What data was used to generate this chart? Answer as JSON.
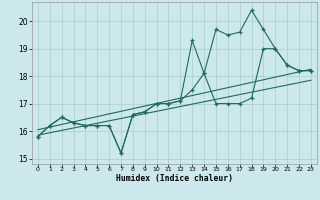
{
  "bg_color": "#cce8ec",
  "grid_color": "#aacdd0",
  "line_color": "#1e6b5a",
  "xlim": [
    -0.5,
    23.5
  ],
  "ylim": [
    14.8,
    20.7
  ],
  "yticks": [
    15,
    16,
    17,
    18,
    19,
    20
  ],
  "xticks": [
    0,
    1,
    2,
    3,
    4,
    5,
    6,
    7,
    8,
    9,
    10,
    11,
    12,
    13,
    14,
    15,
    16,
    17,
    18,
    19,
    20,
    21,
    22,
    23
  ],
  "xlabel": "Humidex (Indice chaleur)",
  "series1_x": [
    0,
    1,
    2,
    3,
    4,
    5,
    6,
    7,
    8,
    9,
    10,
    11,
    12,
    13,
    14,
    15,
    16,
    17,
    18,
    19,
    20,
    21,
    22,
    23
  ],
  "series1_y": [
    15.8,
    16.2,
    16.5,
    16.3,
    16.2,
    16.2,
    16.2,
    15.2,
    16.6,
    16.7,
    17.0,
    17.0,
    17.1,
    19.3,
    18.1,
    19.7,
    19.5,
    19.6,
    20.4,
    19.7,
    19.0,
    18.4,
    18.2,
    18.2
  ],
  "series2_x": [
    0,
    1,
    2,
    3,
    4,
    5,
    6,
    7,
    8,
    9,
    10,
    11,
    12,
    13,
    14,
    15,
    16,
    17,
    18,
    19,
    20,
    21,
    22,
    23
  ],
  "series2_y": [
    15.8,
    16.2,
    16.5,
    16.3,
    16.2,
    16.2,
    16.2,
    15.2,
    16.6,
    16.7,
    17.0,
    17.0,
    17.1,
    17.5,
    18.1,
    17.0,
    17.0,
    17.0,
    17.2,
    19.0,
    19.0,
    18.4,
    18.2,
    18.2
  ],
  "trend1_x": [
    0,
    23
  ],
  "trend1_y": [
    16.05,
    18.25
  ],
  "trend2_x": [
    0,
    23
  ],
  "trend2_y": [
    15.85,
    17.85
  ]
}
